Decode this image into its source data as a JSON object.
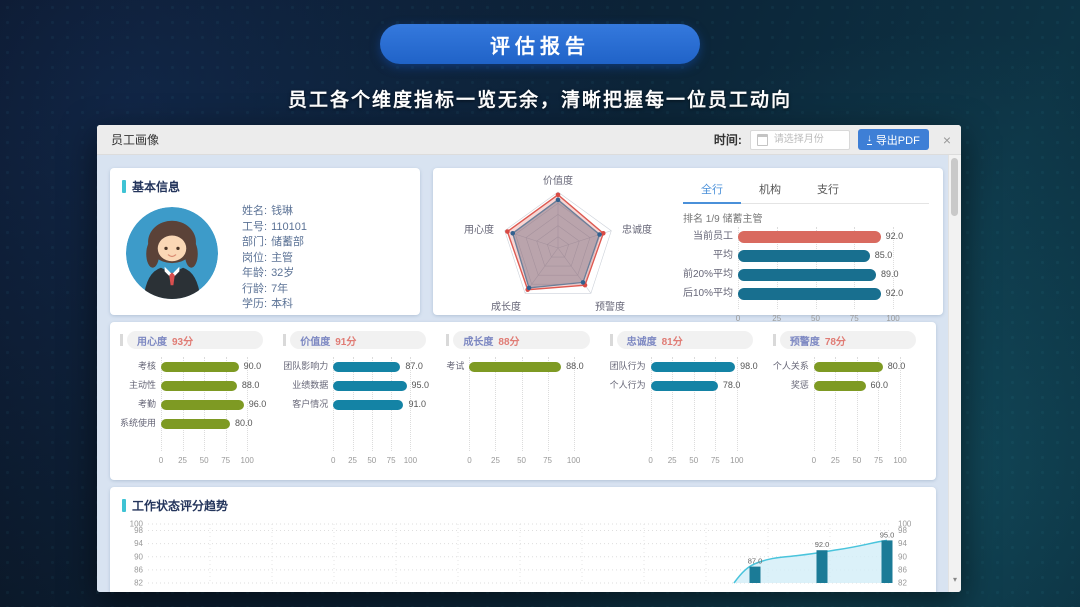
{
  "hero": {
    "button_label": "评估报告",
    "subtitle": "员工各个维度指标一览无余，清晰把握每一位员工动向"
  },
  "modal": {
    "title": "员工画像",
    "time_label": "时间:",
    "time_placeholder": "请选择月份",
    "export_icon": "↓",
    "export_label": "导出PDF",
    "close_icon": "×",
    "scroll_down_icon": "▾",
    "accent_color": "#3e7fd6"
  },
  "basic_info": {
    "section_title": "基本信息",
    "fields": [
      {
        "label": "姓名:",
        "value": "钱琳"
      },
      {
        "label": "工号:",
        "value": "110101"
      },
      {
        "label": "部门:",
        "value": "储蓄部"
      },
      {
        "label": "岗位:",
        "value": "主管"
      },
      {
        "label": "年龄:",
        "value": "32岁"
      },
      {
        "label": "行龄:",
        "value": "7年"
      },
      {
        "label": "学历:",
        "value": "本科"
      }
    ]
  },
  "comparison": {
    "tabs": [
      "全行",
      "机构",
      "支行"
    ],
    "active_tab": "全行",
    "ranking_text": "排名 1/9 储蓄主管"
  },
  "trend_section": {
    "section_title": "工作状态评分趋势"
  },
  "chart_data": [
    {
      "id": "radar",
      "type": "radar",
      "axes": [
        "价值度",
        "忠诚度",
        "预警度",
        "成长度",
        "用心度"
      ],
      "max": 100,
      "series": [
        {
          "color": "#dd5a52",
          "fill": "rgba(227,90,85,0.25)",
          "dot": "#d94a44",
          "values": [
            95,
            85,
            82,
            92,
            95
          ]
        },
        {
          "color": "#6b7f99",
          "fill": "rgba(110,105,125,0.45)",
          "dot": "#31618f",
          "values": [
            86,
            78,
            76,
            88,
            85
          ]
        }
      ]
    },
    {
      "id": "comparison",
      "type": "hbar",
      "categories": [
        "当前员工",
        "平均",
        "前20%平均",
        "后10%平均"
      ],
      "values": [
        92.0,
        85.0,
        89.0,
        92.0
      ],
      "bar_colors": [
        "#d96a5f",
        "#186f8f",
        "#186f8f",
        "#186f8f"
      ],
      "xticks": [
        0,
        25,
        50,
        75,
        100
      ],
      "xlim": [
        0,
        100
      ]
    },
    {
      "id": "dim-1",
      "type": "hbar",
      "title": "用心度",
      "score_label": "93分",
      "color": "#7e9a23",
      "categories": [
        "考核",
        "主动性",
        "考勤",
        "系统使用"
      ],
      "values": [
        90.0,
        88.0,
        96.0,
        80.0
      ],
      "xticks": [
        0,
        25,
        50,
        75,
        100
      ],
      "xlim": [
        0,
        100
      ]
    },
    {
      "id": "dim-2",
      "type": "hbar",
      "title": "价值度",
      "score_label": "91分",
      "color": "#1483a5",
      "categories": [
        "团队影响力",
        "业绩数据",
        "客户情况"
      ],
      "values": [
        87.0,
        95.0,
        91.0
      ],
      "xticks": [
        0,
        25,
        50,
        75,
        100
      ],
      "xlim": [
        0,
        100
      ]
    },
    {
      "id": "dim-3",
      "type": "hbar",
      "title": "成长度",
      "score_label": "88分",
      "color": "#7e9a23",
      "categories": [
        "考试"
      ],
      "values": [
        88.0
      ],
      "xticks": [
        0,
        25,
        50,
        75,
        100
      ],
      "xlim": [
        0,
        100
      ]
    },
    {
      "id": "dim-4",
      "type": "hbar",
      "title": "忠诚度",
      "score_label": "81分",
      "color": "#1483a5",
      "categories": [
        "团队行为",
        "个人行为"
      ],
      "values": [
        98.0,
        78.0
      ],
      "xticks": [
        0,
        25,
        50,
        75,
        100
      ],
      "xlim": [
        0,
        100
      ]
    },
    {
      "id": "dim-5",
      "type": "hbar",
      "title": "预警度",
      "score_label": "78分",
      "color": "#7e9a23",
      "categories": [
        "个人关系",
        "奖惩"
      ],
      "values": [
        80.0,
        60.0
      ],
      "xticks": [
        0,
        25,
        50,
        75,
        100
      ],
      "xlim": [
        0,
        100
      ]
    },
    {
      "id": "trend",
      "type": "bar-line",
      "title": "工作状态评分趋势",
      "ylim": [
        82,
        100
      ],
      "yticks": [
        100,
        98,
        94,
        90,
        86,
        82
      ],
      "bar_values": [
        87.0,
        92.0,
        95.0
      ],
      "bar_color": "#1b7b97",
      "line_color": "#49c4dc",
      "area_color": "#d2eef7"
    }
  ]
}
